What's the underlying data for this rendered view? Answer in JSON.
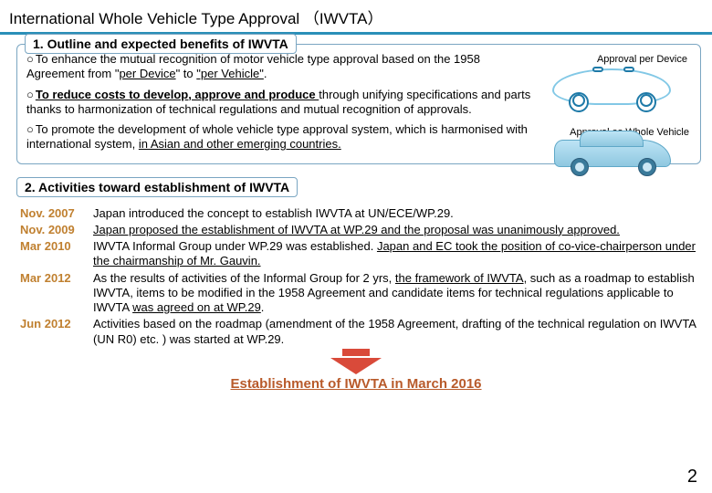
{
  "title": "International Whole Vehicle Type Approval （IWVTA）",
  "title_underline_color": "#2a8fb8",
  "section1": {
    "header": "1. Outline and expected benefits of IWVTA",
    "bullets": [
      {
        "prefix": "○",
        "html": "To enhance the mutual recognition of motor vehicle type approval based on the 1958 Agreement from \"<span class='u'>per Device</span>\" to <span class='u'>\"per Vehicle\"</span>."
      },
      {
        "prefix": "○",
        "html": "<span class='u b'>To reduce costs to develop, approve and produce </span>through unifying specifications and parts thanks to harmonization of technical regulations and mutual recognition of approvals."
      },
      {
        "prefix": "○",
        "html": "To promote the development of whole vehicle type approval system, which is harmonised with international system, <span class='u'>in Asian and other emerging countries.</span>"
      }
    ],
    "diagram_labels": {
      "top": "Approval per Device",
      "bottom": "Approval as Whole Vehicle"
    }
  },
  "section2": {
    "header": "2. Activities toward establishment of IWVTA",
    "rows": [
      {
        "date": "Nov. 2007",
        "html": "Japan introduced the concept to establish IWVTA  at UN/ECE/WP.29."
      },
      {
        "date": "Nov. 2009",
        "html": "<span class='u'>Japan proposed the establishment of IWVTA at WP.29 and the proposal was unanimously approved.</span>"
      },
      {
        "date": "Mar 2010",
        "html": "IWVTA Informal Group under WP.29 was established. <span class='u'>Japan and EC took the position of co-vice-chairperson under the chairmanship of Mr. Gauvin.</span>"
      },
      {
        "date": "Mar 2012",
        "html": "As the results of activities of the Informal Group for 2 yrs, <span class='u'>the framework of IWVTA</span>, such as a roadmap to establish IWVTA, items to be modified in the 1958 Agreement and candidate items for technical regulations applicable to IWVTA <span class='u'>was agreed on at WP.29</span>."
      },
      {
        "date": "Jun 2012",
        "html": "Activities based on the roadmap (amendment of the 1958 Agreement, drafting of the technical regulation on IWVTA (UN R0) etc. ) was started at WP.29."
      }
    ]
  },
  "final": "Establishment of IWVTA in March 2016",
  "page_number": "2",
  "colors": {
    "border": "#7aa6c2",
    "date": "#c08030",
    "arrow": "#d94a3a",
    "final_text": "#b85a2a"
  }
}
